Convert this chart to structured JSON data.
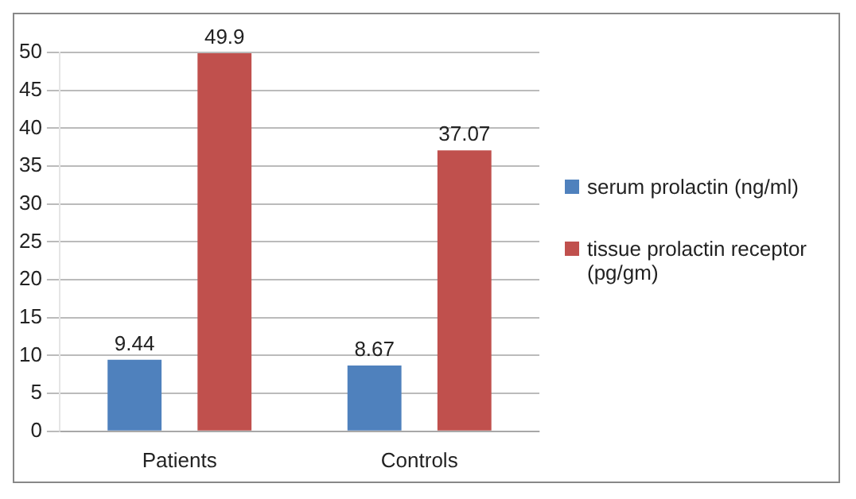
{
  "chart_data": {
    "type": "bar",
    "categories": [
      "Patients",
      "Controls"
    ],
    "series": [
      {
        "name": "serum prolactin (ng/ml)",
        "color": "#4f81bd",
        "values": [
          9.44,
          8.67
        ]
      },
      {
        "name": "tissue prolactin receptor (pg/gm)",
        "color": "#c0504d",
        "values": [
          49.9,
          37.07
        ]
      }
    ],
    "ylim": [
      0,
      50
    ],
    "yticks": [
      0,
      5,
      10,
      15,
      20,
      25,
      30,
      35,
      40,
      45,
      50
    ],
    "grid": "y",
    "legend": "right",
    "data_labels": true
  }
}
